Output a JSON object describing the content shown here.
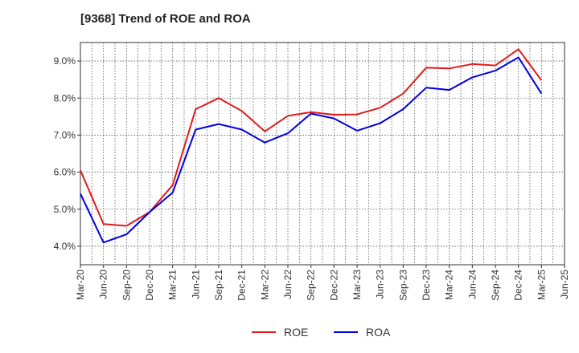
{
  "chart_data": {
    "type": "line",
    "title": "[9368]  Trend of ROE and ROA",
    "xlabel": "",
    "ylabel": "",
    "categories": [
      "Mar-20",
      "Jun-20",
      "Sep-20",
      "Dec-20",
      "Mar-21",
      "Jun-21",
      "Sep-21",
      "Dec-21",
      "Mar-22",
      "Jun-22",
      "Sep-22",
      "Dec-22",
      "Mar-23",
      "Jun-23",
      "Sep-23",
      "Dec-23",
      "Mar-24",
      "Jun-24",
      "Sep-24",
      "Dec-24",
      "Mar-25",
      "Jun-25"
    ],
    "ylim": [
      3.5,
      9.5
    ],
    "yticks": [
      4.0,
      5.0,
      6.0,
      7.0,
      8.0,
      9.0
    ],
    "ytick_labels": [
      "4.0%",
      "5.0%",
      "6.0%",
      "7.0%",
      "8.0%",
      "9.0%"
    ],
    "grid": true,
    "legend_position": "bottom-center",
    "series": [
      {
        "name": "ROE",
        "color": "#e31a1c",
        "values": [
          6.05,
          4.6,
          4.55,
          4.92,
          5.65,
          7.7,
          8.0,
          7.65,
          7.1,
          7.52,
          7.62,
          7.55,
          7.56,
          7.74,
          8.12,
          8.82,
          8.8,
          8.92,
          8.88,
          9.32,
          8.48,
          null
        ]
      },
      {
        "name": "ROA",
        "color": "#0000e6",
        "values": [
          5.42,
          4.1,
          4.32,
          4.92,
          5.45,
          7.15,
          7.3,
          7.15,
          6.8,
          7.05,
          7.58,
          7.45,
          7.12,
          7.32,
          7.7,
          8.28,
          8.22,
          8.56,
          8.74,
          9.1,
          8.12,
          null
        ]
      }
    ]
  }
}
